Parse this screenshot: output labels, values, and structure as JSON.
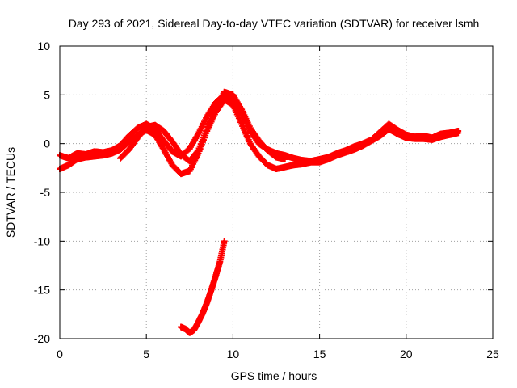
{
  "chart_data": {
    "type": "scatter",
    "title": "Day 293 of 2021, Sidereal Day-to-day VTEC variation (SDTVAR) for receiver lsmh",
    "xlabel": "GPS time / hours",
    "ylabel": "SDTVAR / TECUs",
    "xlim": [
      0,
      25
    ],
    "ylim": [
      -20,
      10
    ],
    "xticks": [
      0,
      5,
      10,
      15,
      20,
      25
    ],
    "yticks": [
      -20,
      -15,
      -10,
      -5,
      0,
      5,
      10
    ],
    "xtick_labels": [
      "0",
      "5",
      "10",
      "15",
      "20",
      "25"
    ],
    "ytick_labels": [
      "-20",
      "-15",
      "-10",
      "-5",
      "0",
      "5",
      "10"
    ],
    "grid": true,
    "marker": "+",
    "series": [
      {
        "name": "track-a",
        "color": "#ff0000",
        "x": [
          0.0,
          0.5,
          1.0,
          1.5,
          2.0,
          2.5,
          3.0,
          3.5,
          4.0,
          4.5,
          5.0,
          5.5,
          6.0,
          6.5,
          7.0,
          7.5,
          8.0,
          8.5,
          9.0,
          9.5,
          10.0,
          10.5,
          11.0,
          11.5,
          12.0,
          12.5,
          13.0,
          13.5,
          14.0,
          14.5,
          15.0,
          15.5,
          16.0,
          16.5,
          17.0,
          17.5,
          18.0,
          18.5,
          19.0,
          19.5,
          20.0,
          20.5,
          21.0,
          21.5,
          22.0,
          22.5,
          23.0
        ],
        "y": [
          -1.2,
          -1.5,
          -1.0,
          -1.1,
          -0.8,
          -0.9,
          -0.7,
          -0.2,
          0.8,
          1.6,
          2.0,
          1.5,
          0.3,
          -0.8,
          -1.3,
          -0.5,
          1.0,
          2.8,
          4.2,
          5.0,
          4.5,
          3.0,
          1.3,
          0.0,
          -0.6,
          -1.0,
          -1.2,
          -1.5,
          -1.7,
          -1.8,
          -1.6,
          -1.4,
          -1.0,
          -0.7,
          -0.3,
          0.0,
          0.4,
          1.2,
          2.0,
          1.4,
          0.9,
          0.7,
          0.8,
          0.6,
          1.0,
          1.1,
          1.3
        ]
      },
      {
        "name": "track-b",
        "color": "#ff0000",
        "x": [
          0.0,
          0.5,
          1.0,
          1.5,
          2.0,
          2.5,
          3.0,
          3.5,
          4.0,
          4.5,
          5.0,
          5.5,
          6.0,
          6.5,
          7.0,
          7.5,
          8.0,
          8.5,
          9.0,
          9.5,
          10.0,
          10.5,
          11.0,
          11.5,
          12.0,
          12.5,
          13.0,
          13.5,
          14.0,
          14.5,
          15.0,
          15.5,
          16.0,
          16.5,
          17.0,
          17.5,
          18.0,
          18.5,
          19.0,
          19.5,
          20.0,
          20.5,
          21.0,
          21.5,
          22.0,
          22.5,
          23.0
        ],
        "y": [
          -2.6,
          -2.2,
          -1.6,
          -1.4,
          -1.3,
          -1.2,
          -1.0,
          -0.6,
          0.2,
          0.9,
          1.4,
          0.9,
          -0.6,
          -2.2,
          -3.1,
          -2.8,
          -1.0,
          1.3,
          3.2,
          4.5,
          4.0,
          2.0,
          0.0,
          -1.3,
          -2.2,
          -2.6,
          -2.4,
          -2.2,
          -2.1,
          -1.9,
          -1.9,
          -1.6,
          -1.2,
          -0.9,
          -0.6,
          -0.2,
          0.3,
          0.8,
          1.5,
          1.0,
          0.6,
          0.5,
          0.5,
          0.4,
          0.7,
          0.9,
          1.1
        ]
      },
      {
        "name": "track-c",
        "color": "#ff0000",
        "x": [
          3.5,
          4.0,
          4.5,
          5.0,
          5.5,
          6.0,
          6.5,
          7.0,
          7.5,
          8.0,
          8.5,
          9.0,
          9.5,
          10.0,
          10.5,
          11.0,
          11.5,
          12.0,
          12.5,
          13.0
        ],
        "y": [
          -1.5,
          -0.6,
          0.6,
          1.7,
          1.9,
          1.3,
          0.2,
          -1.1,
          -1.8,
          -0.7,
          1.5,
          3.6,
          5.3,
          5.0,
          3.5,
          1.6,
          0.3,
          -0.7,
          -1.4,
          -1.6
        ]
      },
      {
        "name": "track-d",
        "color": "#ff0000",
        "x": [
          7.0,
          7.25,
          7.5,
          7.75,
          8.0,
          8.25,
          8.5,
          8.75,
          9.0,
          9.25,
          9.5
        ],
        "y": [
          -18.8,
          -19.0,
          -19.4,
          -19.1,
          -18.3,
          -17.4,
          -16.3,
          -15.0,
          -13.6,
          -12.1,
          -10.0
        ]
      }
    ]
  }
}
